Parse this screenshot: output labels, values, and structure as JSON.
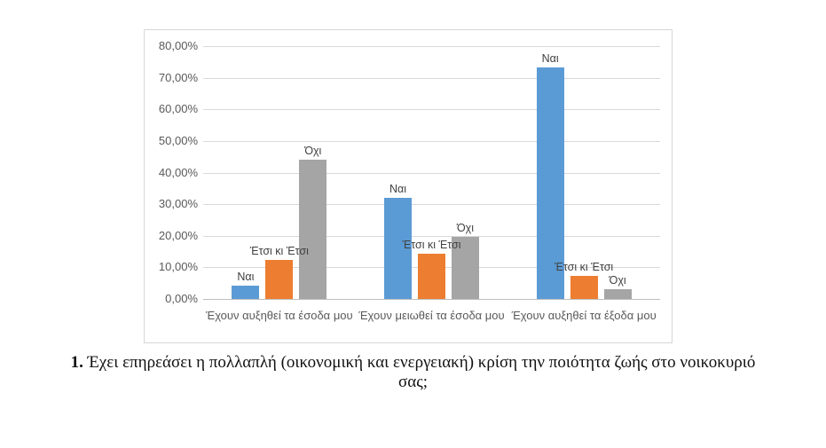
{
  "chart_data": {
    "type": "bar",
    "title": "",
    "categories": [
      "Έχουν αυξηθεί τα έσοδα μου",
      "Έχουν μειωθεί τα έσοδα μου",
      "Έχουν αυξηθεί τα έξοδα μου"
    ],
    "series": [
      {
        "name": "Ναι",
        "color": "#5b9bd5",
        "values": [
          4.3,
          32.0,
          73.3
        ]
      },
      {
        "name": "Έτσι κι Έτσι",
        "color": "#ed7d31",
        "values": [
          12.3,
          14.3,
          7.3
        ]
      },
      {
        "name": "Όχι",
        "color": "#a5a5a5",
        "values": [
          44.0,
          19.7,
          3.0
        ]
      }
    ],
    "bar_label_style": "series name shown above each bar",
    "y_ticks": [
      "80,00%",
      "70,00%",
      "60,00%",
      "50,00%",
      "40,00%",
      "30,00%",
      "20,00%",
      "10,00%",
      "0,00%"
    ],
    "ylim": [
      0,
      80
    ],
    "grid": true,
    "legend": false,
    "colors": {
      "gridline": "#d9d9d9",
      "axis_line": "#bfbfbf",
      "tick_text": "#595959",
      "label_text": "#404040"
    }
  },
  "caption": {
    "number": "1.",
    "text": " Έχει επηρεάσει η πολλαπλή (οικονομική και ενεργειακή) κρίση την ποιότητα ζωής στο νοικοκυριό σας;"
  }
}
